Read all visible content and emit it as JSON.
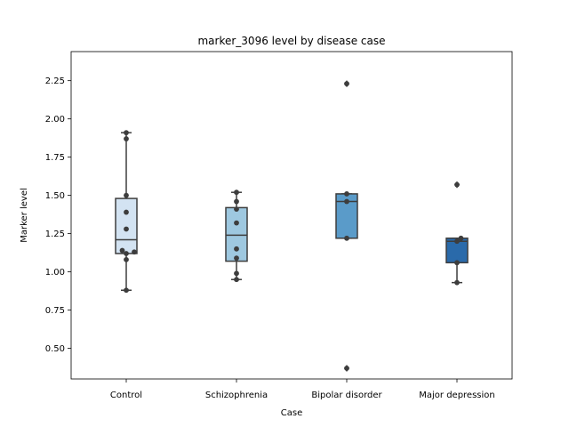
{
  "chart_data": {
    "type": "box",
    "title": "marker_3096 level by disease case",
    "xlabel": "Case",
    "ylabel": "Marker level",
    "categories": [
      "Control",
      "Schizophrenia",
      "Bipolar disorder",
      "Major depression"
    ],
    "ylim": [
      0.3,
      2.44
    ],
    "yticks": [
      0.5,
      0.75,
      1.0,
      1.25,
      1.5,
      1.75,
      2.0,
      2.25
    ],
    "ytick_labels": [
      "0.50",
      "0.75",
      "1.00",
      "1.25",
      "1.50",
      "1.75",
      "2.00",
      "2.25"
    ],
    "boxes": [
      {
        "q1": 1.12,
        "median": 1.21,
        "q3": 1.48,
        "whisker_low": 0.88,
        "whisker_high": 1.91,
        "outliers": [],
        "color": "#d3e3f2"
      },
      {
        "q1": 1.07,
        "median": 1.24,
        "q3": 1.42,
        "whisker_low": 0.95,
        "whisker_high": 1.52,
        "outliers": [],
        "color": "#9ec8e0"
      },
      {
        "q1": 1.22,
        "median": 1.46,
        "q3": 1.51,
        "whisker_low": 1.22,
        "whisker_high": 1.51,
        "outliers": [
          2.23,
          0.37
        ],
        "color": "#5a9bc9"
      },
      {
        "q1": 1.06,
        "median": 1.2,
        "q3": 1.22,
        "whisker_low": 0.93,
        "whisker_high": 1.22,
        "outliers": [
          1.57
        ],
        "color": "#2a6aaa"
      }
    ],
    "points": [
      [
        0.88,
        1.08,
        1.12,
        1.13,
        1.14,
        1.28,
        1.39,
        1.5,
        1.87,
        1.91
      ],
      [
        0.95,
        0.99,
        1.09,
        1.15,
        1.32,
        1.41,
        1.46,
        1.52
      ],
      [
        0.37,
        1.22,
        1.46,
        1.51,
        2.23
      ],
      [
        0.93,
        1.06,
        1.2,
        1.22,
        1.57
      ]
    ]
  }
}
